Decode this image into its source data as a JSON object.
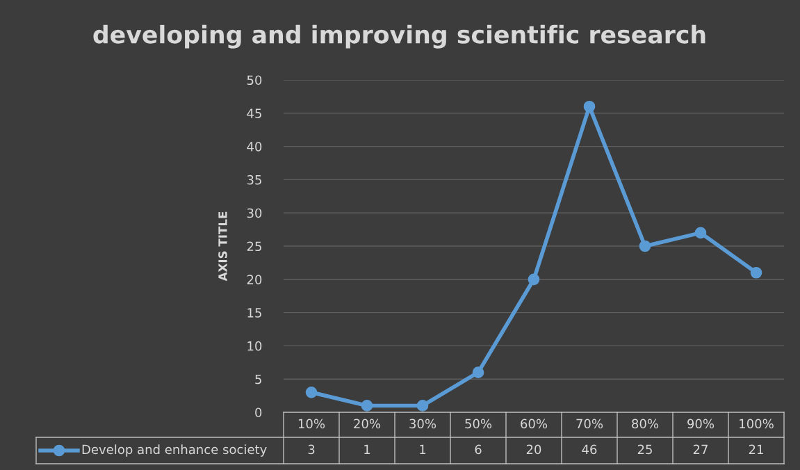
{
  "chart_data": {
    "type": "line",
    "title": "developing and improving scientific research",
    "ylabel": "AXIS TITLE",
    "categories": [
      "10%",
      "20%",
      "30%",
      "50%",
      "60%",
      "70%",
      "80%",
      "90%",
      "100%"
    ],
    "series": [
      {
        "name": "Develop and enhance society",
        "color": "#5b9bd5",
        "values": [
          3,
          1,
          1,
          6,
          20,
          46,
          25,
          27,
          21
        ]
      }
    ],
    "ylim": [
      0,
      50
    ],
    "yticks": [
      0,
      5,
      10,
      15,
      20,
      25,
      30,
      35,
      40,
      45,
      50
    ],
    "grid": "y",
    "legend": "bottom",
    "marker": "circle",
    "line_style": "solid",
    "data_labels": true
  }
}
